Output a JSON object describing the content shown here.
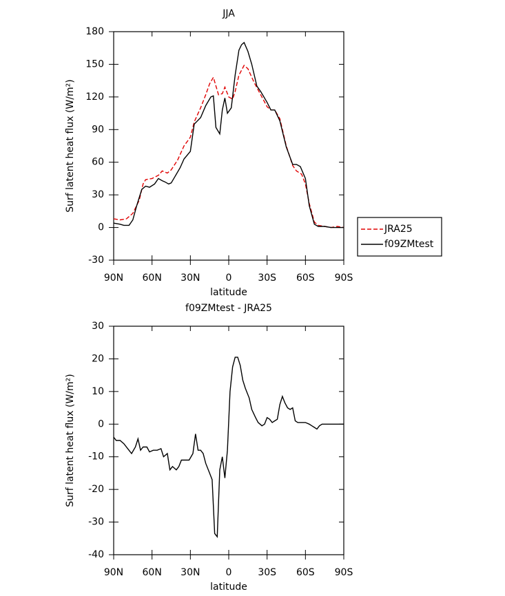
{
  "chart_data": [
    {
      "type": "line",
      "title": "JJA",
      "xlabel": "latitude",
      "ylabel": "Surf latent heat flux (W/m²)",
      "xlim": [
        90,
        -90
      ],
      "xticks": [
        {
          "value": 90,
          "label": "90N"
        },
        {
          "value": 60,
          "label": "60N"
        },
        {
          "value": 30,
          "label": "30N"
        },
        0,
        {
          "value": -30,
          "label": "30S"
        },
        {
          "value": -60,
          "label": "60S"
        },
        {
          "value": -90,
          "label": "90S"
        }
      ],
      "ylim": [
        -30,
        180
      ],
      "yticks": [
        -30,
        0,
        30,
        60,
        90,
        120,
        150,
        180
      ],
      "legend": "right",
      "series": [
        {
          "name": "JRA25",
          "color": "#e00000",
          "dash": true,
          "x": [
            90,
            85,
            80,
            75,
            70,
            67,
            65,
            60,
            55,
            52,
            48,
            45,
            40,
            35,
            30,
            27,
            22,
            18,
            15,
            12,
            8,
            5,
            3,
            0,
            -3,
            -5,
            -8,
            -12,
            -15,
            -20,
            -25,
            -30,
            -33,
            -36,
            -40,
            -45,
            -50,
            -53,
            -57,
            -60,
            -63,
            -67,
            -70,
            -75,
            -80,
            -85,
            -90
          ],
          "values": [
            8,
            7,
            8,
            13,
            25,
            40,
            44,
            45,
            48,
            52,
            50,
            53,
            62,
            75,
            83,
            97,
            110,
            122,
            132,
            138,
            122,
            123,
            129,
            120,
            118,
            125,
            140,
            149,
            146,
            133,
            122,
            111,
            108,
            108,
            100,
            75,
            57,
            52,
            49,
            40,
            22,
            5,
            2,
            1,
            0,
            1,
            0
          ]
        },
        {
          "name": "f09ZMtest",
          "color": "#000000",
          "dash": false,
          "x": [
            90,
            85,
            82,
            78,
            75,
            72,
            68,
            65,
            62,
            58,
            55,
            52,
            50,
            47,
            45,
            42,
            38,
            35,
            30,
            27,
            22,
            18,
            14,
            12,
            10,
            7,
            5,
            3,
            1,
            -2,
            -5,
            -8,
            -10,
            -12,
            -15,
            -18,
            -22,
            -25,
            -30,
            -33,
            -36,
            -40,
            -45,
            -50,
            -53,
            -56,
            -60,
            -63,
            -67,
            -70,
            -75,
            -80,
            -85,
            -90
          ],
          "values": [
            4,
            3,
            2,
            2,
            7,
            20,
            35,
            38,
            37,
            40,
            45,
            43,
            42,
            40,
            41,
            47,
            55,
            63,
            70,
            95,
            101,
            112,
            120,
            121,
            92,
            86,
            108,
            119,
            105,
            110,
            140,
            163,
            168,
            170,
            162,
            150,
            130,
            125,
            115,
            108,
            108,
            98,
            74,
            58,
            58,
            56,
            45,
            20,
            3,
            1,
            1,
            0,
            0,
            0
          ]
        }
      ]
    },
    {
      "type": "line",
      "title": "f09ZMtest - JRA25",
      "xlabel": "latitude",
      "ylabel": "Surf latent heat flux (W/m²)",
      "xlim": [
        90,
        -90
      ],
      "xticks": [
        {
          "value": 90,
          "label": "90N"
        },
        {
          "value": 60,
          "label": "60N"
        },
        {
          "value": 30,
          "label": "30N"
        },
        0,
        {
          "value": -30,
          "label": "30S"
        },
        {
          "value": -60,
          "label": "60S"
        },
        {
          "value": -90,
          "label": "90S"
        }
      ],
      "ylim": [
        -40,
        30
      ],
      "yticks": [
        -40,
        -30,
        -20,
        -10,
        0,
        10,
        20,
        30
      ],
      "series": [
        {
          "color": "#000000",
          "dash": false,
          "x": [
            90,
            88,
            85,
            82,
            79,
            76,
            73,
            71,
            69,
            67,
            64,
            62,
            59,
            56,
            53,
            51,
            48,
            46,
            44,
            41,
            39,
            37,
            34,
            31,
            28,
            26,
            24,
            22,
            20,
            18,
            15,
            13,
            11,
            9,
            7,
            5,
            3,
            1,
            -1,
            -3,
            -5,
            -7,
            -9,
            -11,
            -13,
            -16,
            -18,
            -21,
            -23,
            -26,
            -28,
            -30,
            -32,
            -34,
            -36,
            -38,
            -40,
            -42,
            -44,
            -46,
            -48,
            -50,
            -52,
            -54,
            -57,
            -60,
            -63,
            -65,
            -67,
            -69,
            -71,
            -73,
            -90
          ],
          "values": [
            -4,
            -5,
            -5,
            -6,
            -7.5,
            -9,
            -7,
            -4.5,
            -8,
            -7,
            -7,
            -8.5,
            -8,
            -8,
            -7.5,
            -10,
            -9,
            -14,
            -13,
            -14,
            -13,
            -11,
            -11,
            -11,
            -9,
            -3,
            -8,
            -8,
            -9,
            -12,
            -15,
            -17,
            -33.5,
            -34.5,
            -14,
            -10,
            -16.5,
            -8,
            10,
            17.5,
            20.5,
            20.5,
            18,
            13.5,
            11,
            8,
            4.5,
            2,
            0.5,
            -0.5,
            0,
            2,
            1.5,
            0.5,
            1,
            1.5,
            6,
            8.5,
            6.5,
            5,
            4.5,
            5,
            1,
            0.5,
            0.5,
            0.5,
            0,
            -0.5,
            -1,
            -1.5,
            -0.5,
            0,
            0
          ]
        }
      ]
    }
  ]
}
